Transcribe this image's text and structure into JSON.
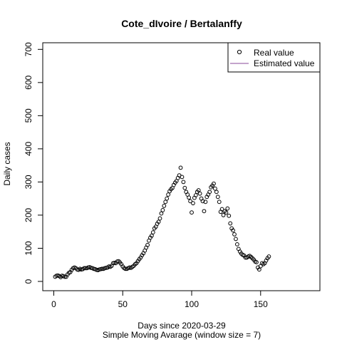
{
  "chart_data": {
    "type": "scatter",
    "title": "Cote_dIvoire / Bertalanffy",
    "xlabel": "Days since 2020-03-29",
    "xlabel2": "Simple Moving Avarage (window size = 7)",
    "ylabel": "Daily cases",
    "xlim": [
      -8,
      193
    ],
    "ylim": [
      -28,
      720
    ],
    "x_ticks": [
      0,
      50,
      100,
      150
    ],
    "y_ticks": [
      0,
      100,
      200,
      300,
      400,
      500,
      600,
      700
    ],
    "grid": false,
    "legend": {
      "position": "top-right",
      "entries": [
        {
          "label": "Real value",
          "symbol": "open-circle",
          "color": "#000000"
        },
        {
          "label": "Estimated value",
          "symbol": "line",
          "color": "#8a4a9a"
        }
      ]
    },
    "series": [
      {
        "name": "Real value",
        "marker": "open-circle",
        "color": "#000000",
        "points": [
          [
            1,
            14
          ],
          [
            2,
            17
          ],
          [
            3,
            18
          ],
          [
            4,
            16
          ],
          [
            5,
            13
          ],
          [
            6,
            17
          ],
          [
            7,
            16
          ],
          [
            8,
            14
          ],
          [
            9,
            14
          ],
          [
            10,
            21
          ],
          [
            11,
            26
          ],
          [
            12,
            28
          ],
          [
            13,
            35
          ],
          [
            14,
            40
          ],
          [
            15,
            42
          ],
          [
            16,
            40
          ],
          [
            17,
            36
          ],
          [
            18,
            35
          ],
          [
            19,
            38
          ],
          [
            20,
            36
          ],
          [
            21,
            37
          ],
          [
            22,
            40
          ],
          [
            23,
            40
          ],
          [
            24,
            40
          ],
          [
            25,
            42
          ],
          [
            26,
            43
          ],
          [
            27,
            41
          ],
          [
            28,
            40
          ],
          [
            29,
            38
          ],
          [
            30,
            37
          ],
          [
            31,
            35
          ],
          [
            32,
            34
          ],
          [
            33,
            36
          ],
          [
            34,
            37
          ],
          [
            35,
            38
          ],
          [
            36,
            38
          ],
          [
            37,
            40
          ],
          [
            38,
            41
          ],
          [
            39,
            42
          ],
          [
            40,
            45
          ],
          [
            41,
            44
          ],
          [
            42,
            47
          ],
          [
            43,
            55
          ],
          [
            44,
            56
          ],
          [
            45,
            55
          ],
          [
            46,
            60
          ],
          [
            47,
            61
          ],
          [
            48,
            57
          ],
          [
            49,
            52
          ],
          [
            50,
            45
          ],
          [
            51,
            40
          ],
          [
            52,
            38
          ],
          [
            53,
            38
          ],
          [
            54,
            40
          ],
          [
            55,
            42
          ],
          [
            56,
            41
          ],
          [
            57,
            44
          ],
          [
            58,
            47
          ],
          [
            59,
            52
          ],
          [
            60,
            55
          ],
          [
            61,
            61
          ],
          [
            62,
            67
          ],
          [
            63,
            72
          ],
          [
            64,
            79
          ],
          [
            65,
            85
          ],
          [
            66,
            93
          ],
          [
            67,
            102
          ],
          [
            68,
            110
          ],
          [
            69,
            123
          ],
          [
            70,
            132
          ],
          [
            71,
            138
          ],
          [
            72,
            148
          ],
          [
            73,
            160
          ],
          [
            74,
            165
          ],
          [
            75,
            174
          ],
          [
            76,
            180
          ],
          [
            77,
            190
          ],
          [
            78,
            205
          ],
          [
            79,
            215
          ],
          [
            80,
            228
          ],
          [
            81,
            240
          ],
          [
            82,
            250
          ],
          [
            83,
            262
          ],
          [
            84,
            272
          ],
          [
            85,
            278
          ],
          [
            86,
            282
          ],
          [
            87,
            291
          ],
          [
            88,
            298
          ],
          [
            89,
            303
          ],
          [
            90,
            312
          ],
          [
            91,
            320
          ],
          [
            92,
            343
          ],
          [
            93,
            315
          ],
          [
            94,
            300
          ],
          [
            95,
            282
          ],
          [
            96,
            270
          ],
          [
            97,
            262
          ],
          [
            98,
            253
          ],
          [
            99,
            242
          ],
          [
            100,
            208
          ],
          [
            101,
            236
          ],
          [
            102,
            252
          ],
          [
            103,
            260
          ],
          [
            104,
            270
          ],
          [
            105,
            275
          ],
          [
            106,
            265
          ],
          [
            107,
            250
          ],
          [
            108,
            242
          ],
          [
            109,
            212
          ],
          [
            110,
            240
          ],
          [
            111,
            255
          ],
          [
            112,
            262
          ],
          [
            113,
            270
          ],
          [
            114,
            284
          ],
          [
            115,
            289
          ],
          [
            116,
            295
          ],
          [
            117,
            280
          ],
          [
            118,
            270
          ],
          [
            119,
            255
          ],
          [
            120,
            240
          ],
          [
            121,
            210
          ],
          [
            122,
            218
          ],
          [
            123,
            200
          ],
          [
            124,
            212
          ],
          [
            125,
            208
          ],
          [
            126,
            220
          ],
          [
            127,
            198
          ],
          [
            128,
            175
          ],
          [
            129,
            160
          ],
          [
            130,
            154
          ],
          [
            131,
            142
          ],
          [
            132,
            128
          ],
          [
            133,
            112
          ],
          [
            134,
            98
          ],
          [
            135,
            90
          ],
          [
            136,
            84
          ],
          [
            137,
            80
          ],
          [
            138,
            78
          ],
          [
            139,
            72
          ],
          [
            140,
            72
          ],
          [
            141,
            75
          ],
          [
            142,
            77
          ],
          [
            143,
            74
          ],
          [
            144,
            70
          ],
          [
            145,
            66
          ],
          [
            146,
            60
          ],
          [
            147,
            58
          ],
          [
            148,
            42
          ],
          [
            149,
            36
          ],
          [
            150,
            46
          ],
          [
            151,
            55
          ],
          [
            152,
            52
          ],
          [
            153,
            55
          ],
          [
            154,
            63
          ],
          [
            155,
            70
          ],
          [
            156,
            75
          ]
        ]
      }
    ]
  }
}
